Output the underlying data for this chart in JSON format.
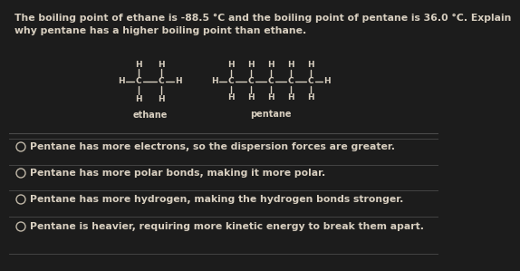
{
  "bg_color": "#1c1c1c",
  "text_color": "#d8cfc0",
  "question_line1": "The boiling point of ethane is -88.5 °C and the boiling point of pentane is 36.0 °C. Explain",
  "question_line2": "why pentane has a higher boiling point than ethane.",
  "options": [
    "Pentane has more electrons, so the dispersion forces are greater.",
    "Pentane has more polar bonds, making it more polar.",
    "Pentane has more hydrogen, making the hydrogen bonds stronger.",
    "Pentane is heavier, requiring more kinetic energy to break them apart."
  ],
  "ethane_label": "ethane",
  "pentane_label": "pentane",
  "divider_color": "#4a4a4a",
  "circle_color": "#c0b8a8",
  "font_size_question": 7.8,
  "font_size_options": 7.8,
  "font_size_mol": 6.5,
  "font_size_label": 7.0
}
